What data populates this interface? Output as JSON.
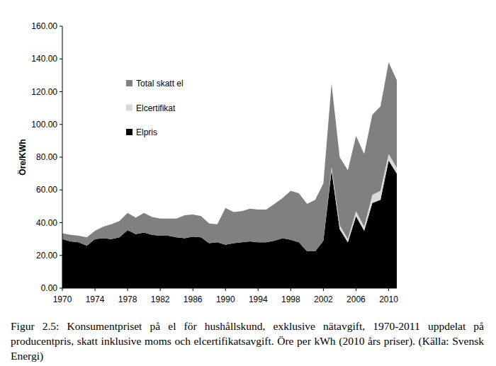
{
  "chart_data": {
    "type": "area",
    "stacked": true,
    "ylabel": "Öre/KWh",
    "caption": "Figur 2.5: Konsumentpriset på el för hushållskund, exklusive nätavgift, 1970-2011 uppdelat på producentpris, skatt inklusive moms och elcertifikatsavgift. Öre per kWh (2010 års priser). (Källa: Svensk Energi)",
    "x": [
      1970,
      1971,
      1972,
      1973,
      1974,
      1975,
      1976,
      1977,
      1978,
      1979,
      1980,
      1981,
      1982,
      1983,
      1984,
      1985,
      1986,
      1987,
      1988,
      1989,
      1990,
      1991,
      1992,
      1993,
      1994,
      1995,
      1996,
      1997,
      1998,
      1999,
      2000,
      2001,
      2002,
      2003,
      2004,
      2005,
      2006,
      2007,
      2008,
      2009,
      2010,
      2011
    ],
    "series": [
      {
        "name": "Elpris",
        "color": "#000000",
        "values": [
          30,
          28.5,
          28,
          26,
          30,
          30.5,
          30,
          31,
          35.5,
          33,
          34,
          32.5,
          32,
          32,
          31,
          30.5,
          31.5,
          31,
          27.5,
          28,
          26.5,
          27.5,
          28,
          28.5,
          28,
          28,
          29,
          30.5,
          29.5,
          28,
          22.5,
          22.5,
          29,
          72,
          36,
          28,
          44,
          35,
          52,
          54,
          78,
          70
        ]
      },
      {
        "name": "Elcertifikat",
        "color": "#d9d9d9",
        "values": [
          0,
          0,
          0,
          0,
          0,
          0,
          0,
          0,
          0,
          0,
          0,
          0,
          0,
          0,
          0,
          0,
          0,
          0,
          0,
          0,
          0,
          0,
          0,
          0,
          0,
          0,
          0,
          0,
          0,
          0,
          0,
          0,
          0,
          2,
          2.5,
          2,
          3,
          2.5,
          5,
          5.5,
          4,
          3.5
        ]
      },
      {
        "name": "Total skatt el",
        "color": "#808080",
        "values": [
          3.5,
          4,
          4,
          5,
          5,
          7,
          9,
          10,
          10.5,
          10,
          12,
          11,
          10.5,
          10.5,
          11.5,
          14,
          13.5,
          13,
          12,
          11,
          22.5,
          19,
          19,
          20,
          20,
          20,
          22.5,
          24.5,
          30,
          30,
          29,
          31.5,
          35,
          51,
          41.5,
          42,
          46,
          44.5,
          49,
          51.5,
          56,
          53.5
        ]
      }
    ],
    "xlim": [
      1970,
      2011
    ],
    "xticks": [
      1970,
      1974,
      1978,
      1982,
      1986,
      1990,
      1994,
      1998,
      2002,
      2006,
      2010
    ],
    "ylim": [
      0,
      160
    ],
    "yticks": [
      {
        "value": 0,
        "label": "0.00"
      },
      {
        "value": 20,
        "label": "20.00"
      },
      {
        "value": 40,
        "label": "40.00"
      },
      {
        "value": 60,
        "label": "60.00"
      },
      {
        "value": 80,
        "label": "80.00"
      },
      {
        "value": 100,
        "label": "100.00"
      },
      {
        "value": 120,
        "label": "120.00"
      },
      {
        "value": 140,
        "label": "140.00"
      },
      {
        "value": 160,
        "label": "160.00"
      }
    ],
    "grid": false,
    "legend": "upper left"
  }
}
